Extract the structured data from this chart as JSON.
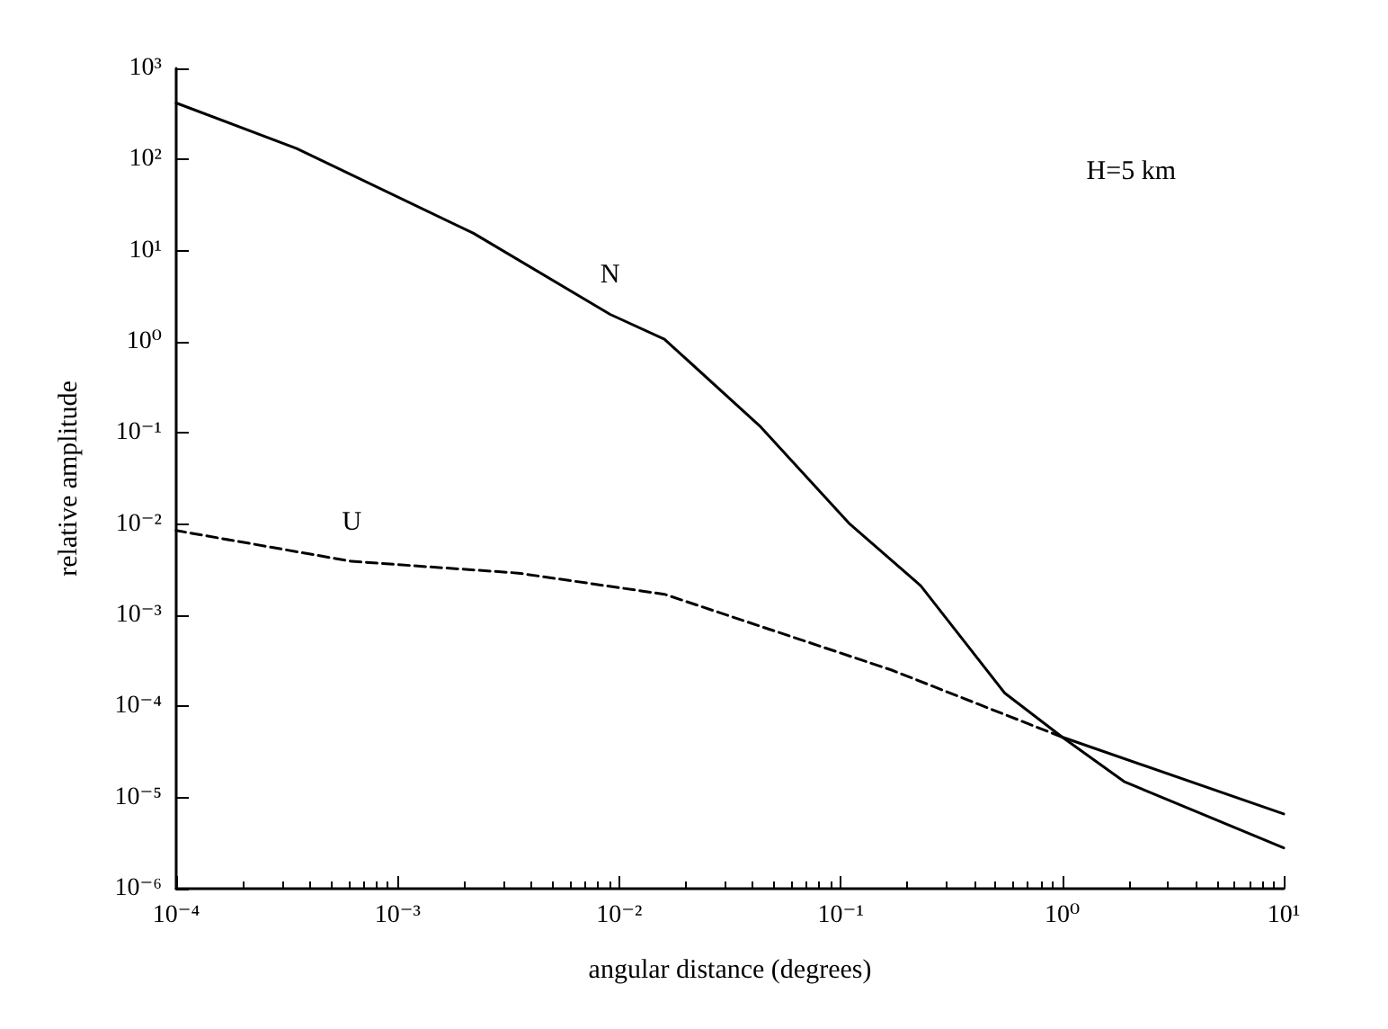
{
  "chart_data": {
    "type": "line",
    "xlabel": "angular distance (degrees)",
    "ylabel": "relative amplitude",
    "log": "xy",
    "grid": false,
    "legend": false,
    "marker": "none",
    "xlim": [
      0.0001,
      10
    ],
    "ylim": [
      1e-06,
      1000
    ],
    "xticks": [
      {
        "value": 0.0001,
        "label": "10⁻⁴"
      },
      {
        "value": 0.001,
        "label": "10⁻³"
      },
      {
        "value": 0.01,
        "label": "10⁻²"
      },
      {
        "value": 0.1,
        "label": "10⁻¹"
      },
      {
        "value": 1,
        "label": "10⁰"
      },
      {
        "value": 10,
        "label": "10¹"
      }
    ],
    "yticks": [
      {
        "value": 1e-06,
        "label": "10⁻⁶"
      },
      {
        "value": 1e-05,
        "label": "10⁻⁵"
      },
      {
        "value": 0.0001,
        "label": "10⁻⁴"
      },
      {
        "value": 0.001,
        "label": "10⁻³"
      },
      {
        "value": 0.01,
        "label": "10⁻²"
      },
      {
        "value": 0.1,
        "label": "10⁻¹"
      },
      {
        "value": 1,
        "label": "10⁰"
      },
      {
        "value": 10,
        "label": "10¹"
      },
      {
        "value": 100,
        "label": "10²"
      },
      {
        "value": 1000,
        "label": "10³"
      }
    ],
    "series": [
      {
        "name": "N",
        "color": "#000000",
        "line_style": "solid",
        "x": [
          10,
          1.9,
          1,
          0.55,
          0.23,
          0.11,
          0.043,
          0.016,
          0.0091,
          0.0022,
          0.00035,
          0.0001
        ],
        "values": [
          2.8e-06,
          1.5e-05,
          4.6e-05,
          0.00014,
          0.0021,
          0.01,
          0.12,
          1.07,
          2,
          15.5,
          132,
          417
        ]
      },
      {
        "color": "#000000",
        "line_style": "solid",
        "x": [
          10,
          1
        ],
        "values": [
          6.6e-06,
          4.6e-05
        ]
      },
      {
        "name": "U",
        "color": "#000000",
        "line_style": "dashed",
        "x": [
          1,
          0.17,
          0.016,
          0.0035,
          0.00062,
          0.0001
        ],
        "values": [
          4.6e-05,
          0.00025,
          0.0017,
          0.0029,
          0.0039,
          0.0085
        ]
      }
    ],
    "annotations": [
      "H=5 km"
    ]
  }
}
